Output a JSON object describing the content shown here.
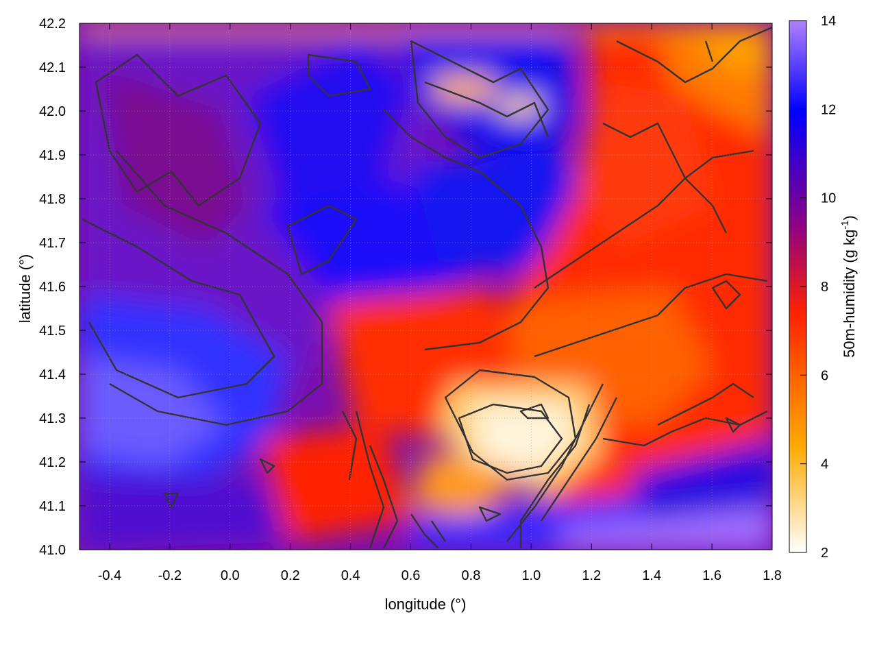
{
  "chart_data": {
    "type": "heatmap",
    "title": "",
    "xlabel": "longitude (°)",
    "ylabel": "latitude (°)",
    "xlim": [
      -0.5,
      1.8
    ],
    "ylim": [
      41.0,
      42.2
    ],
    "x_ticks": [
      "-0.4",
      "-0.2",
      "0.0",
      "0.2",
      "0.4",
      "0.6",
      "0.8",
      "1.0",
      "1.2",
      "1.4",
      "1.6",
      "1.8"
    ],
    "y_ticks": [
      "41.0",
      "41.1",
      "41.2",
      "41.3",
      "41.4",
      "41.5",
      "41.6",
      "41.7",
      "41.8",
      "41.9",
      "42.0",
      "42.1",
      "42.2"
    ],
    "colorbar": {
      "label": "50m-humidity (g kg",
      "label_superscript": "-1",
      "label_suffix": ")",
      "range": [
        2,
        14
      ],
      "ticks": [
        "2",
        "4",
        "6",
        "8",
        "10",
        "12",
        "14"
      ],
      "colormap_stops": [
        "#ffffff",
        "#ffaa00",
        "#ff2200",
        "#8b0088",
        "#0000ff",
        "#b080ff"
      ]
    },
    "overlay": "terrain contour lines (dark gray)",
    "grid": true,
    "field_regions": [
      {
        "region": "west",
        "lon": [
          -0.5,
          0.4
        ],
        "lat": [
          41.0,
          42.2
        ],
        "humidity": 10.5
      },
      {
        "region": "southwest",
        "lon": [
          -0.5,
          0.0
        ],
        "lat": [
          41.0,
          41.5
        ],
        "humidity": 12.5
      },
      {
        "region": "north-central",
        "lon": [
          0.4,
          1.2
        ],
        "lat": [
          41.6,
          42.2
        ],
        "humidity": 10.8
      },
      {
        "region": "east",
        "lon": [
          1.2,
          1.8
        ],
        "lat": [
          41.4,
          42.2
        ],
        "humidity": 7.8
      },
      {
        "region": "northeast corner",
        "lon": [
          1.4,
          1.8
        ],
        "lat": [
          41.9,
          42.2
        ],
        "humidity": 6.0
      },
      {
        "region": "southeast core",
        "lon": [
          0.6,
          1.1
        ],
        "lat": [
          41.15,
          41.4
        ],
        "humidity": 3.0
      },
      {
        "region": "south coast",
        "lon": [
          0.7,
          1.8
        ],
        "lat": [
          41.0,
          41.12
        ],
        "humidity": 11.5
      }
    ]
  },
  "colors": {
    "contour": "#333333",
    "axis": "#000000"
  }
}
